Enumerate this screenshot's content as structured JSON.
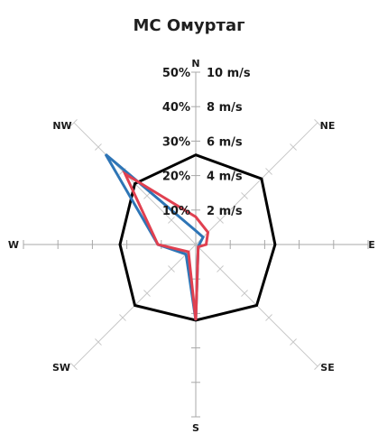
{
  "chart_data": {
    "type": "radar",
    "title": "МС Омуртаг",
    "directions": [
      "N",
      "NE",
      "E",
      "SE",
      "S",
      "SW",
      "W",
      "NW"
    ],
    "radial_ticks": [
      {
        "value": 10,
        "percent_label": "10%",
        "speed_label": "2 m/s"
      },
      {
        "value": 20,
        "percent_label": "20%",
        "speed_label": "4 m/s"
      },
      {
        "value": 30,
        "percent_label": "30%",
        "speed_label": "6 m/s"
      },
      {
        "value": 40,
        "percent_label": "40%",
        "speed_label": "8 m/s"
      },
      {
        "value": 50,
        "percent_label": "50%",
        "speed_label": "10 m/s"
      }
    ],
    "rmax": 50,
    "series": [
      {
        "color": "#000000",
        "values": [
          26,
          27,
          23,
          25,
          22,
          25,
          22,
          25
        ]
      },
      {
        "color": "#2e75b6",
        "values": [
          4,
          3,
          1,
          1,
          22,
          4,
          11,
          37
        ]
      },
      {
        "color": "#e04050",
        "values": [
          8,
          5,
          3,
          1,
          22,
          3,
          11,
          29
        ]
      }
    ]
  },
  "labels": {
    "title": "МС Омуртаг"
  }
}
